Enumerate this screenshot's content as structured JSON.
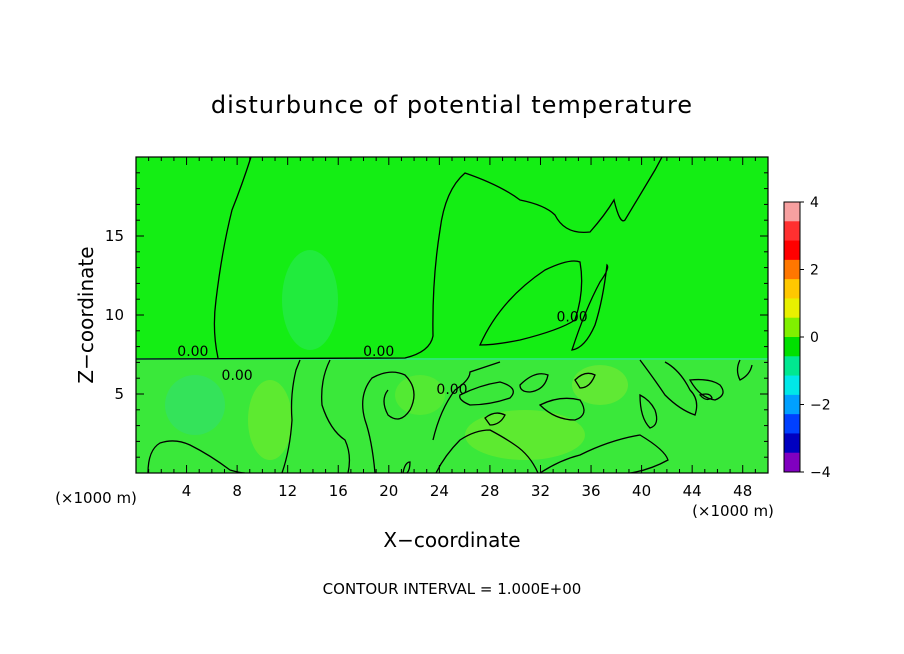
{
  "chart_data": {
    "type": "heatmap",
    "title": "disturbunce of potential temperature",
    "xlabel": "X−coordinate",
    "ylabel": "Z−coordinate",
    "x_unit": "(×1000 m)",
    "x_unit_right": "(×1000 m)",
    "xlim": [
      0,
      50
    ],
    "ylim": [
      0,
      20
    ],
    "x_ticks": [
      4,
      8,
      12,
      16,
      20,
      24,
      28,
      32,
      36,
      40,
      44,
      48
    ],
    "x_tick_labels": [
      "4",
      "8",
      "12",
      "16",
      "20",
      "24",
      "28",
      "32",
      "36",
      "40",
      "44",
      "48"
    ],
    "y_ticks": [
      5,
      10,
      15
    ],
    "y_tick_labels": [
      "5",
      "10",
      "15"
    ],
    "colorbar": {
      "range": [
        -4,
        4
      ],
      "tick_values": [
        4,
        2,
        0,
        -2,
        -4
      ],
      "tick_labels": [
        "4",
        "2",
        "0",
        "−2",
        "−4"
      ],
      "colors": [
        "#f7a0a0",
        "#ff3030",
        "#ff0000",
        "#ff7700",
        "#ffc800",
        "#e8f000",
        "#80f000",
        "#00e000",
        "#00e890",
        "#00e8e8",
        "#00a0ff",
        "#0040ff",
        "#0000c0",
        "#8000c0"
      ]
    },
    "contour_labels": [
      {
        "text": "0.00",
        "x": 4.5,
        "z": 7.4
      },
      {
        "text": "0.00",
        "x": 19.2,
        "z": 7.4
      },
      {
        "text": "0.00",
        "x": 8.0,
        "z": 5.9
      },
      {
        "text": "0.00",
        "x": 25.0,
        "z": 5.0
      },
      {
        "text": "0.00",
        "x": 34.5,
        "z": 9.6
      }
    ],
    "field_colors": {
      "upper": "#14ee14",
      "lower": "#3ae83a",
      "patch_light": "#6ceb2c",
      "patch_blue": "#2ee870"
    },
    "contour_interval_note": "CONTOUR INTERVAL = 1.000E+00"
  }
}
